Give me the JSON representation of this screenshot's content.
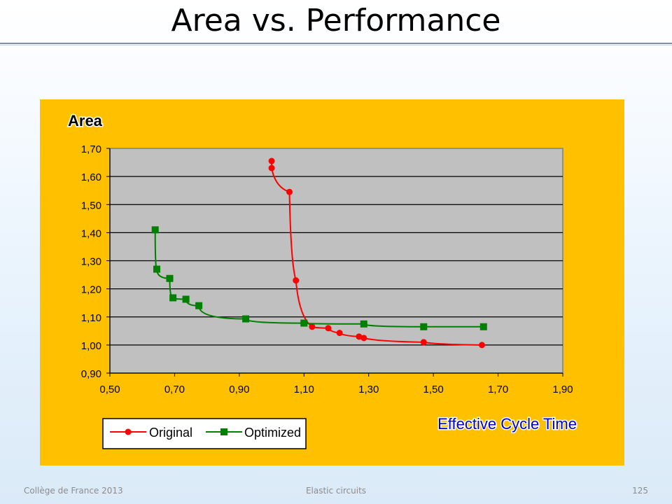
{
  "slide": {
    "title": "Area vs. Performance",
    "footer_left": "Collège de France 2013",
    "footer_center": "Elastic circuits",
    "page_number": "125"
  },
  "colors": {
    "chart_background": "#ffc000",
    "plot_background": "#c0c0c0",
    "original": "#ff0000",
    "optimized": "#008000",
    "xlabel": "#0000cc"
  },
  "chart_data": {
    "type": "scatter",
    "title": "",
    "ylabel": "Area",
    "xlabel": "Effective Cycle Time",
    "xlim": [
      0.5,
      1.9
    ],
    "ylim": [
      0.9,
      1.7
    ],
    "x_ticks": [
      "0,50",
      "0,70",
      "0,90",
      "1,10",
      "1,30",
      "1,50",
      "1,70",
      "1,90"
    ],
    "y_ticks": [
      "0,90",
      "1,00",
      "1,10",
      "1,20",
      "1,30",
      "1,40",
      "1,50",
      "1,60",
      "1,70"
    ],
    "grid": true,
    "legend_position": "bottom-left",
    "series": [
      {
        "name": "Original",
        "marker": "circle",
        "points": [
          {
            "x": 1.0,
            "y": 1.655
          },
          {
            "x": 1.0,
            "y": 1.63
          },
          {
            "x": 1.055,
            "y": 1.545
          },
          {
            "x": 1.075,
            "y": 1.23
          },
          {
            "x": 1.125,
            "y": 1.065
          },
          {
            "x": 1.175,
            "y": 1.06
          },
          {
            "x": 1.21,
            "y": 1.043
          },
          {
            "x": 1.27,
            "y": 1.03
          },
          {
            "x": 1.285,
            "y": 1.025
          },
          {
            "x": 1.47,
            "y": 1.01
          },
          {
            "x": 1.65,
            "y": 1.0
          }
        ]
      },
      {
        "name": "Optimized",
        "marker": "square",
        "points": [
          {
            "x": 0.64,
            "y": 1.41
          },
          {
            "x": 0.645,
            "y": 1.27
          },
          {
            "x": 0.685,
            "y": 1.237
          },
          {
            "x": 0.695,
            "y": 1.168
          },
          {
            "x": 0.735,
            "y": 1.163
          },
          {
            "x": 0.775,
            "y": 1.14
          },
          {
            "x": 0.92,
            "y": 1.093
          },
          {
            "x": 1.1,
            "y": 1.078
          },
          {
            "x": 1.285,
            "y": 1.075
          },
          {
            "x": 1.47,
            "y": 1.065
          },
          {
            "x": 1.655,
            "y": 1.065
          }
        ]
      }
    ]
  }
}
